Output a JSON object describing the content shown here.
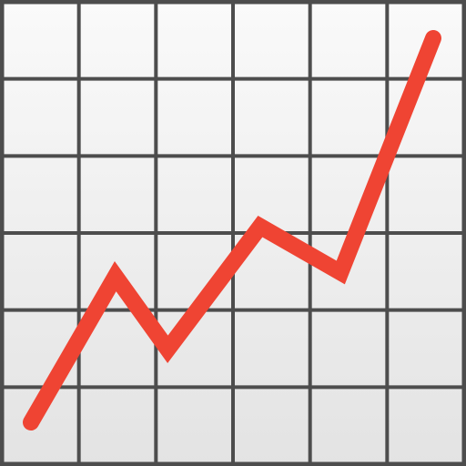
{
  "icon": {
    "name": "chart-increasing-icon",
    "grid": {
      "columns": 6,
      "rows": 6
    },
    "colors": {
      "background_top": "#fafafa",
      "background_bottom": "#e3e3e3",
      "grid_line": "#4d4d4d",
      "trend_line": "#ef4433"
    },
    "trend": {
      "direction": "increasing",
      "points": [
        [
          0.0,
          0.0
        ],
        [
          0.21,
          0.38
        ],
        [
          0.34,
          0.19
        ],
        [
          0.57,
          0.51
        ],
        [
          0.77,
          0.39
        ],
        [
          1.0,
          1.0
        ]
      ]
    }
  }
}
